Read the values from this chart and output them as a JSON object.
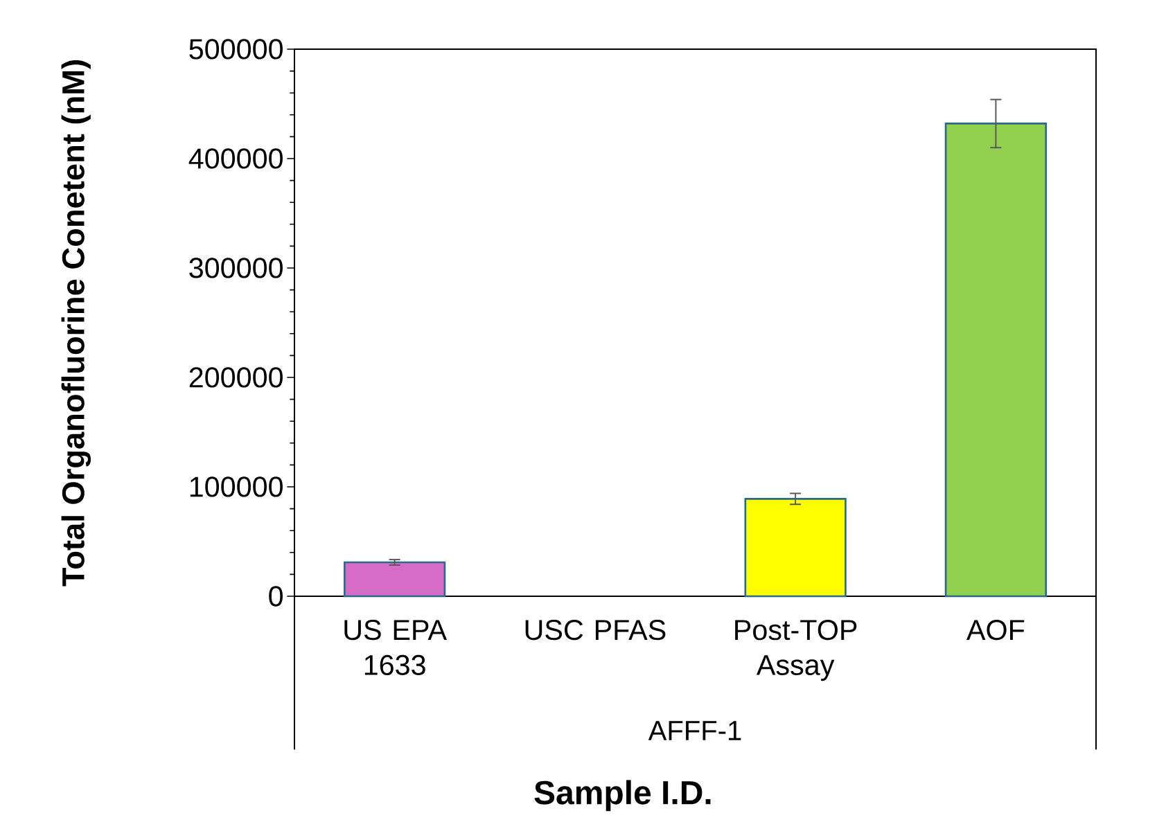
{
  "chart_data": {
    "type": "bar",
    "xlabel": "Sample I.D.",
    "ylabel": "Total Organofluorine Conetent (nM)",
    "categories": [
      "US EPA 1633",
      "USC PFAS",
      "Post-TOP Assay",
      "AOF"
    ],
    "values": [
      31000,
      null,
      89000,
      432000
    ],
    "errors": [
      2500,
      null,
      5000,
      22000
    ],
    "colors": [
      "#d66cc8",
      "#ffffff",
      "#ffff00",
      "#92d050"
    ],
    "ylim": [
      0,
      500000
    ],
    "yticks": [
      0,
      100000,
      200000,
      300000,
      400000,
      500000
    ],
    "annotations": [
      "AFFF-1"
    ],
    "grid": false
  }
}
